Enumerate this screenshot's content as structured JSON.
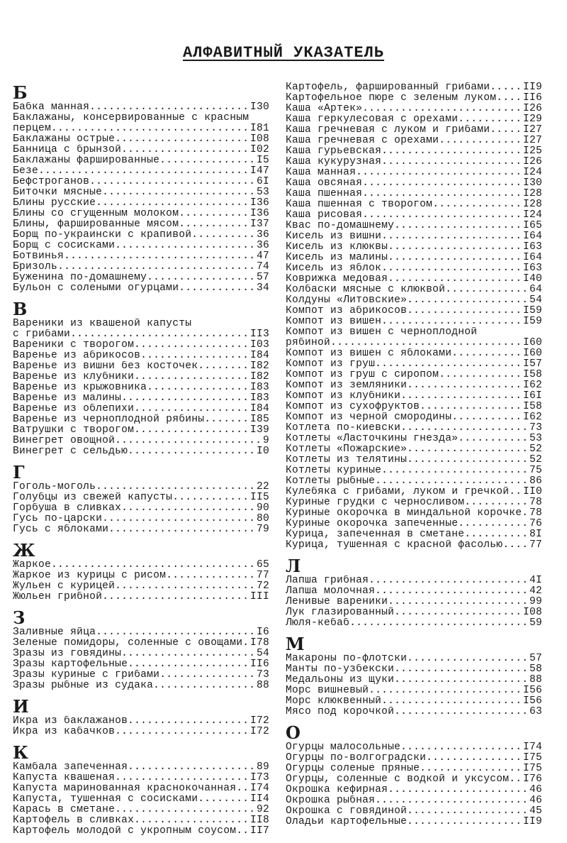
{
  "title": "АЛФАВИТНЫЙ УКАЗАТЕЛЬ",
  "columns": [
    {
      "sections": [
        {
          "letter": "Б",
          "entries": [
            {
              "name": "Бабка манная",
              "page": "I30"
            },
            {
              "name": "Баклажаны, консервированные с красным",
              "cont": "перцем",
              "page": "I81"
            },
            {
              "name": "Баклажаны острые",
              "page": "I08"
            },
            {
              "name": "Банница с брынзой",
              "page": "I02"
            },
            {
              "name": "Баклажаны фаршированные",
              "page": "I5"
            },
            {
              "name": "Безе",
              "page": "I47"
            },
            {
              "name": "Бефстроганов",
              "page": "6I"
            },
            {
              "name": "Биточки мясные",
              "page": "53"
            },
            {
              "name": "Блины русские",
              "page": "I36"
            },
            {
              "name": "Блины со сгущенным молоком",
              "page": "I36"
            },
            {
              "name": "Блины, фаршированные мясом",
              "page": "I37"
            },
            {
              "name": "Борщ по-украински с крапивой",
              "page": "36"
            },
            {
              "name": "Борщ с сосисками",
              "page": "36"
            },
            {
              "name": "Ботвинья",
              "page": "47"
            },
            {
              "name": "Бризоль",
              "page": "74"
            },
            {
              "name": "Буженина по-домашнему",
              "page": "57"
            },
            {
              "name": "Бульон с солеными огурцами",
              "page": "34"
            }
          ]
        },
        {
          "letter": "В",
          "entries": [
            {
              "name": "Вареники из квашеной капусты",
              "cont": "с грибами",
              "page": "II3"
            },
            {
              "name": "Вареники с творогом",
              "page": "I03"
            },
            {
              "name": "Варенье из абрикосов",
              "page": "I84"
            },
            {
              "name": "Варенье из вишни без косточек",
              "page": "I82"
            },
            {
              "name": "Варенье из клубники",
              "page": "I82"
            },
            {
              "name": "Варенье из крыжовника",
              "page": "I83"
            },
            {
              "name": "Варенье из малины",
              "page": "I83"
            },
            {
              "name": "Варенье из облепихи",
              "page": "I84"
            },
            {
              "name": "Варенье из черноплодной рябины",
              "page": "I85"
            },
            {
              "name": "Ватрушки с творогом",
              "page": "I39"
            },
            {
              "name": "Винегрет овощной",
              "page": "9"
            },
            {
              "name": "Винегрет с сельдью",
              "page": "I0"
            }
          ]
        },
        {
          "letter": "Г",
          "entries": [
            {
              "name": "Гоголь-моголь",
              "page": "22"
            },
            {
              "name": "Голубцы из свежей капусты",
              "page": "II5"
            },
            {
              "name": "Горбуша в сливках",
              "page": "90"
            },
            {
              "name": "Гусь по-царски",
              "page": "80"
            },
            {
              "name": "Гусь с яблоками",
              "page": "79"
            }
          ]
        },
        {
          "letter": "Ж",
          "entries": [
            {
              "name": "Жаркое",
              "page": "65"
            },
            {
              "name": "Жаркое из курицы с рисом",
              "page": "77"
            },
            {
              "name": "Жульен с курицей",
              "page": "72"
            },
            {
              "name": "Жюльен грибной",
              "page": "III"
            }
          ]
        },
        {
          "letter": "З",
          "entries": [
            {
              "name": "Заливные яйца",
              "page": "I6"
            },
            {
              "name": "Зеленые помидоры, соленные с овощами",
              "page": "I78"
            },
            {
              "name": "Зразы из говядины",
              "page": "54"
            },
            {
              "name": "Зразы картофельные",
              "page": "II6"
            },
            {
              "name": "Зразы куриные с грибами",
              "page": "73"
            },
            {
              "name": "Зразы рыбные из судака",
              "page": "88"
            }
          ]
        },
        {
          "letter": "И",
          "entries": [
            {
              "name": "Икра из баклажанов",
              "page": "I72"
            },
            {
              "name": "Икра из кабачков",
              "page": "I72"
            }
          ]
        },
        {
          "letter": "К",
          "entries": [
            {
              "name": "Камбала запеченная",
              "page": "89"
            },
            {
              "name": "Капуста квашеная",
              "page": "I73"
            },
            {
              "name": "Капуста маринованная краснокочанная",
              "page": "I74"
            },
            {
              "name": "Капуста, тушенная с сосисками",
              "page": "II4"
            },
            {
              "name": "Карась в сметане",
              "page": "92"
            },
            {
              "name": "Картофель в сливках",
              "page": "II8"
            },
            {
              "name": "Картофель молодой с укропным соусом",
              "page": "II7"
            }
          ]
        }
      ]
    },
    {
      "sections": [
        {
          "letter": "",
          "entries": [
            {
              "name": "Картофель, фаршированный грибами",
              "page": "II9"
            },
            {
              "name": "Картофельное пюре с зеленым луком",
              "page": "II6"
            },
            {
              "name": "Каша «Артек»",
              "page": "I26"
            },
            {
              "name": "Каша геркулесовая с орехами",
              "page": "I29"
            },
            {
              "name": "Каша гречневая с луком и грибами",
              "page": "I27"
            },
            {
              "name": "Каша гречневая с орехами",
              "page": "I27"
            },
            {
              "name": "Каша гурьевская",
              "page": "I25"
            },
            {
              "name": "Каша кукурузная",
              "page": "I26"
            },
            {
              "name": "Каша манная",
              "page": "I24"
            },
            {
              "name": "Каша овсяная",
              "page": "I30"
            },
            {
              "name": "Каша пшенная",
              "page": "I28"
            },
            {
              "name": "Каша пшенная с творогом",
              "page": "I28"
            },
            {
              "name": "Каша рисовая",
              "page": "I24"
            },
            {
              "name": "Квас по-домашнему",
              "page": "I65"
            },
            {
              "name": "Кисель из вишни",
              "page": "I64"
            },
            {
              "name": "Кисель из клюквы",
              "page": "I63"
            },
            {
              "name": "Кисель из малины",
              "page": "I64"
            },
            {
              "name": "Кисель из яблок",
              "page": "I63"
            },
            {
              "name": "Коврижка медовая",
              "page": "I40"
            },
            {
              "name": "Колбаски мясные с клюквой",
              "page": "64"
            },
            {
              "name": "Колдуны «Литовские»",
              "page": "54"
            },
            {
              "name": "Компот из абрикосов",
              "page": "I59"
            },
            {
              "name": "Компот из вишен",
              "page": "I59"
            },
            {
              "name": "Компот из вишен с черноплодной",
              "cont": "рябиной",
              "page": "I60"
            },
            {
              "name": "Компот из вишен с яблоками",
              "page": "I60"
            },
            {
              "name": "Компот из груш",
              "page": "I57"
            },
            {
              "name": "Компот из груш с сиропом",
              "page": "I58"
            },
            {
              "name": "Компот из земляники",
              "page": "I62"
            },
            {
              "name": "Компот из клубники",
              "page": "I6I"
            },
            {
              "name": "Компот из сухофруктов",
              "page": "I58"
            },
            {
              "name": "Компот из черной смородины",
              "page": "I62"
            },
            {
              "name": "Котлета по-киевски",
              "page": "73"
            },
            {
              "name": "Котлеты «Ласточкины гнезда»",
              "page": "53"
            },
            {
              "name": "Котлеты «Пожарские»",
              "page": "52"
            },
            {
              "name": "Котлеты из телятины",
              "page": "52"
            },
            {
              "name": "Котлеты куриные",
              "page": "75"
            },
            {
              "name": "Котлеты рыбные",
              "page": "86"
            },
            {
              "name": "Кулебяка с грибами, луком и гречкой",
              "page": "II0"
            },
            {
              "name": "Куриные грудки с черносливом",
              "page": "78"
            },
            {
              "name": "Куриные окорочка в миндальной корочке",
              "page": "78"
            },
            {
              "name": "Куриные окорочка запеченные",
              "page": "76"
            },
            {
              "name": "Курица, запеченная в сметане",
              "page": "8I"
            },
            {
              "name": "Курица, тушенная с красной фасолью",
              "page": "77"
            }
          ]
        },
        {
          "letter": "Л",
          "entries": [
            {
              "name": "Лапша грибная",
              "page": "4I"
            },
            {
              "name": "Лапша молочная",
              "page": "42"
            },
            {
              "name": "Ленивые вареники",
              "page": "99"
            },
            {
              "name": "Лук глазированный",
              "page": "I08"
            },
            {
              "name": "Люля-кебаб",
              "page": "59"
            }
          ]
        },
        {
          "letter": "М",
          "entries": [
            {
              "name": "Макароны по-флотски",
              "page": "57"
            },
            {
              "name": "Манты по-узбекски",
              "page": "58"
            },
            {
              "name": "Медальоны из щуки",
              "page": "88"
            },
            {
              "name": "Морс вишневый",
              "page": "I56"
            },
            {
              "name": "Морс клюквенный",
              "page": "I56"
            },
            {
              "name": "Мясо под корочкой",
              "page": "63"
            }
          ]
        },
        {
          "letter": "О",
          "entries": [
            {
              "name": "Огурцы малосольные",
              "page": "I74"
            },
            {
              "name": "Огурцы по-волгоградски",
              "page": "I75"
            },
            {
              "name": "Огурцы соленые пряные",
              "page": "I75"
            },
            {
              "name": "Огурцы, соленные с водкой и уксусом",
              "page": "I76"
            },
            {
              "name": "Окрошка кефирная",
              "page": "46"
            },
            {
              "name": "Окрошка рыбная",
              "page": "46"
            },
            {
              "name": "Окрошка с говядиной",
              "page": "45"
            },
            {
              "name": "Оладьи картофельные",
              "page": "II9"
            }
          ]
        }
      ]
    }
  ]
}
